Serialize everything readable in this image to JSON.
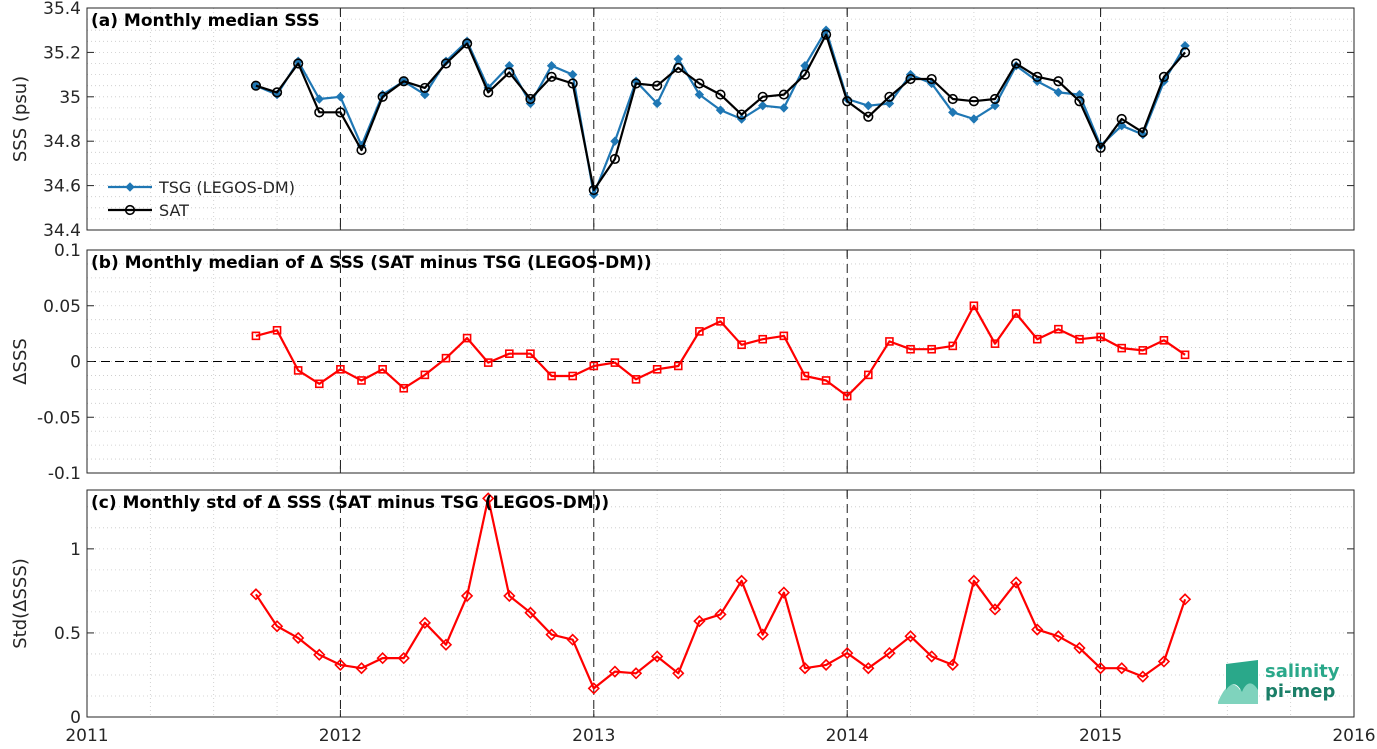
{
  "x_axis": {
    "ticks": [
      2011,
      2012,
      2013,
      2014,
      2015,
      2016
    ],
    "tick_labels": [
      "2011",
      "2012",
      "2013",
      "2014",
      "2015",
      "2016"
    ],
    "range": [
      2011,
      2016
    ]
  },
  "colors": {
    "tsg": "#1f77b4",
    "sat": "#000000",
    "delta": "#ff0000",
    "grid": "#c8c8c8",
    "logo": "#2aa88a"
  },
  "logo": {
    "line1": "salinity",
    "line2": "pi-mep"
  },
  "chart_data": [
    {
      "type": "line",
      "title": "(a) Monthly median SSS",
      "ylabel": "SSS (psu)",
      "ylim": [
        34.4,
        35.4
      ],
      "yticks": [
        34.4,
        34.6,
        34.8,
        35,
        35.2,
        35.4
      ],
      "ytick_labels": [
        "34.4",
        "34.6",
        "34.8",
        "35",
        "35.2",
        "35.4"
      ],
      "legend_position": "lower-left",
      "grid": true,
      "x": [
        "2011-09",
        "2011-10",
        "2011-11",
        "2011-12",
        "2012-01",
        "2012-02",
        "2012-03",
        "2012-04",
        "2012-05",
        "2012-06",
        "2012-07",
        "2012-08",
        "2012-09",
        "2012-10",
        "2012-11",
        "2012-12",
        "2013-01",
        "2013-02",
        "2013-03",
        "2013-04",
        "2013-05",
        "2013-06",
        "2013-07",
        "2013-08",
        "2013-09",
        "2013-10",
        "2013-11",
        "2013-12",
        "2014-01",
        "2014-02",
        "2014-03",
        "2014-04",
        "2014-05",
        "2014-06",
        "2014-07",
        "2014-08",
        "2014-09",
        "2014-10",
        "2014-11",
        "2014-12",
        "2015-01",
        "2015-02",
        "2015-03",
        "2015-04",
        "2015-05"
      ],
      "series": [
        {
          "name": "TSG (LEGOS-DM)",
          "marker": "filled-diamond",
          "values": [
            35.05,
            35.01,
            35.16,
            34.99,
            35.0,
            34.78,
            35.01,
            35.07,
            35.01,
            35.16,
            35.25,
            35.04,
            35.14,
            34.97,
            35.14,
            35.1,
            34.56,
            34.8,
            35.07,
            34.97,
            35.17,
            35.01,
            34.94,
            34.9,
            34.96,
            34.95,
            35.14,
            35.3,
            34.99,
            34.96,
            34.97,
            35.1,
            35.06,
            34.93,
            34.9,
            34.96,
            35.14,
            35.07,
            35.02,
            35.01,
            34.78,
            34.87,
            34.83,
            35.07,
            35.23
          ]
        },
        {
          "name": "SAT",
          "marker": "open-circle",
          "values": [
            35.05,
            35.02,
            35.15,
            34.93,
            34.93,
            34.76,
            35.0,
            35.07,
            35.04,
            35.15,
            35.24,
            35.02,
            35.11,
            34.99,
            35.09,
            35.06,
            34.58,
            34.72,
            35.06,
            35.05,
            35.13,
            35.06,
            35.01,
            34.92,
            35.0,
            35.01,
            35.1,
            35.28,
            34.98,
            34.91,
            35.0,
            35.08,
            35.08,
            34.99,
            34.98,
            34.99,
            35.15,
            35.09,
            35.07,
            34.98,
            34.77,
            34.9,
            34.84,
            35.09,
            35.2
          ]
        }
      ]
    },
    {
      "type": "line",
      "title": "(b) Monthly median of Δ SSS (SAT minus TSG (LEGOS-DM))",
      "ylabel": "ΔSSS",
      "ylim": [
        -0.1,
        0.1
      ],
      "yticks": [
        -0.1,
        -0.05,
        0,
        0.05,
        0.1
      ],
      "ytick_labels": [
        "-0.1",
        "-0.05",
        "0",
        "0.05",
        "0.1"
      ],
      "zero_line": true,
      "grid": true,
      "x": [
        "2011-09",
        "2011-10",
        "2011-11",
        "2011-12",
        "2012-01",
        "2012-02",
        "2012-03",
        "2012-04",
        "2012-05",
        "2012-06",
        "2012-07",
        "2012-08",
        "2012-09",
        "2012-10",
        "2012-11",
        "2012-12",
        "2013-01",
        "2013-02",
        "2013-03",
        "2013-04",
        "2013-05",
        "2013-06",
        "2013-07",
        "2013-08",
        "2013-09",
        "2013-10",
        "2013-11",
        "2013-12",
        "2014-01",
        "2014-02",
        "2014-03",
        "2014-04",
        "2014-05",
        "2014-06",
        "2014-07",
        "2014-08",
        "2014-09",
        "2014-10",
        "2014-11",
        "2014-12",
        "2015-01",
        "2015-02",
        "2015-03",
        "2015-04",
        "2015-05"
      ],
      "series": [
        {
          "marker": "open-square",
          "values": [
            0.023,
            0.028,
            -0.008,
            -0.02,
            -0.007,
            -0.017,
            -0.007,
            -0.024,
            -0.012,
            0.003,
            0.021,
            -0.001,
            0.007,
            0.007,
            -0.013,
            -0.013,
            -0.004,
            -0.001,
            -0.016,
            -0.007,
            -0.004,
            0.027,
            0.036,
            0.015,
            0.02,
            0.023,
            -0.013,
            -0.017,
            -0.031,
            -0.012,
            0.018,
            0.011,
            0.011,
            0.014,
            0.05,
            0.016,
            0.043,
            0.02,
            0.029,
            0.02,
            0.022,
            0.012,
            0.01,
            0.019,
            0.006
          ]
        }
      ]
    },
    {
      "type": "line",
      "title": "(c) Monthly std of Δ SSS (SAT minus TSG (LEGOS-DM))",
      "ylabel": "Std(ΔSSS)",
      "ylim": [
        0,
        1.35
      ],
      "yticks": [
        0,
        0.5,
        1
      ],
      "ytick_labels": [
        "0",
        "0.5",
        "1"
      ],
      "grid": true,
      "x": [
        "2011-09",
        "2011-10",
        "2011-11",
        "2011-12",
        "2012-01",
        "2012-02",
        "2012-03",
        "2012-04",
        "2012-05",
        "2012-06",
        "2012-07",
        "2012-08",
        "2012-09",
        "2012-10",
        "2012-11",
        "2012-12",
        "2013-01",
        "2013-02",
        "2013-03",
        "2013-04",
        "2013-05",
        "2013-06",
        "2013-07",
        "2013-08",
        "2013-09",
        "2013-10",
        "2013-11",
        "2013-12",
        "2014-01",
        "2014-02",
        "2014-03",
        "2014-04",
        "2014-05",
        "2014-06",
        "2014-07",
        "2014-08",
        "2014-09",
        "2014-10",
        "2014-11",
        "2014-12",
        "2015-01",
        "2015-02",
        "2015-03",
        "2015-04",
        "2015-05"
      ],
      "series": [
        {
          "marker": "open-diamond",
          "values": [
            0.73,
            0.54,
            0.47,
            0.37,
            0.31,
            0.29,
            0.35,
            0.35,
            0.56,
            0.43,
            0.72,
            1.3,
            0.72,
            0.62,
            0.49,
            0.46,
            0.17,
            0.27,
            0.26,
            0.36,
            0.26,
            0.57,
            0.61,
            0.81,
            0.49,
            0.74,
            0.29,
            0.31,
            0.38,
            0.29,
            0.38,
            0.48,
            0.36,
            0.31,
            0.81,
            0.64,
            0.8,
            0.52,
            0.48,
            0.41,
            0.29,
            0.29,
            0.24,
            0.33,
            0.7
          ]
        }
      ]
    }
  ]
}
